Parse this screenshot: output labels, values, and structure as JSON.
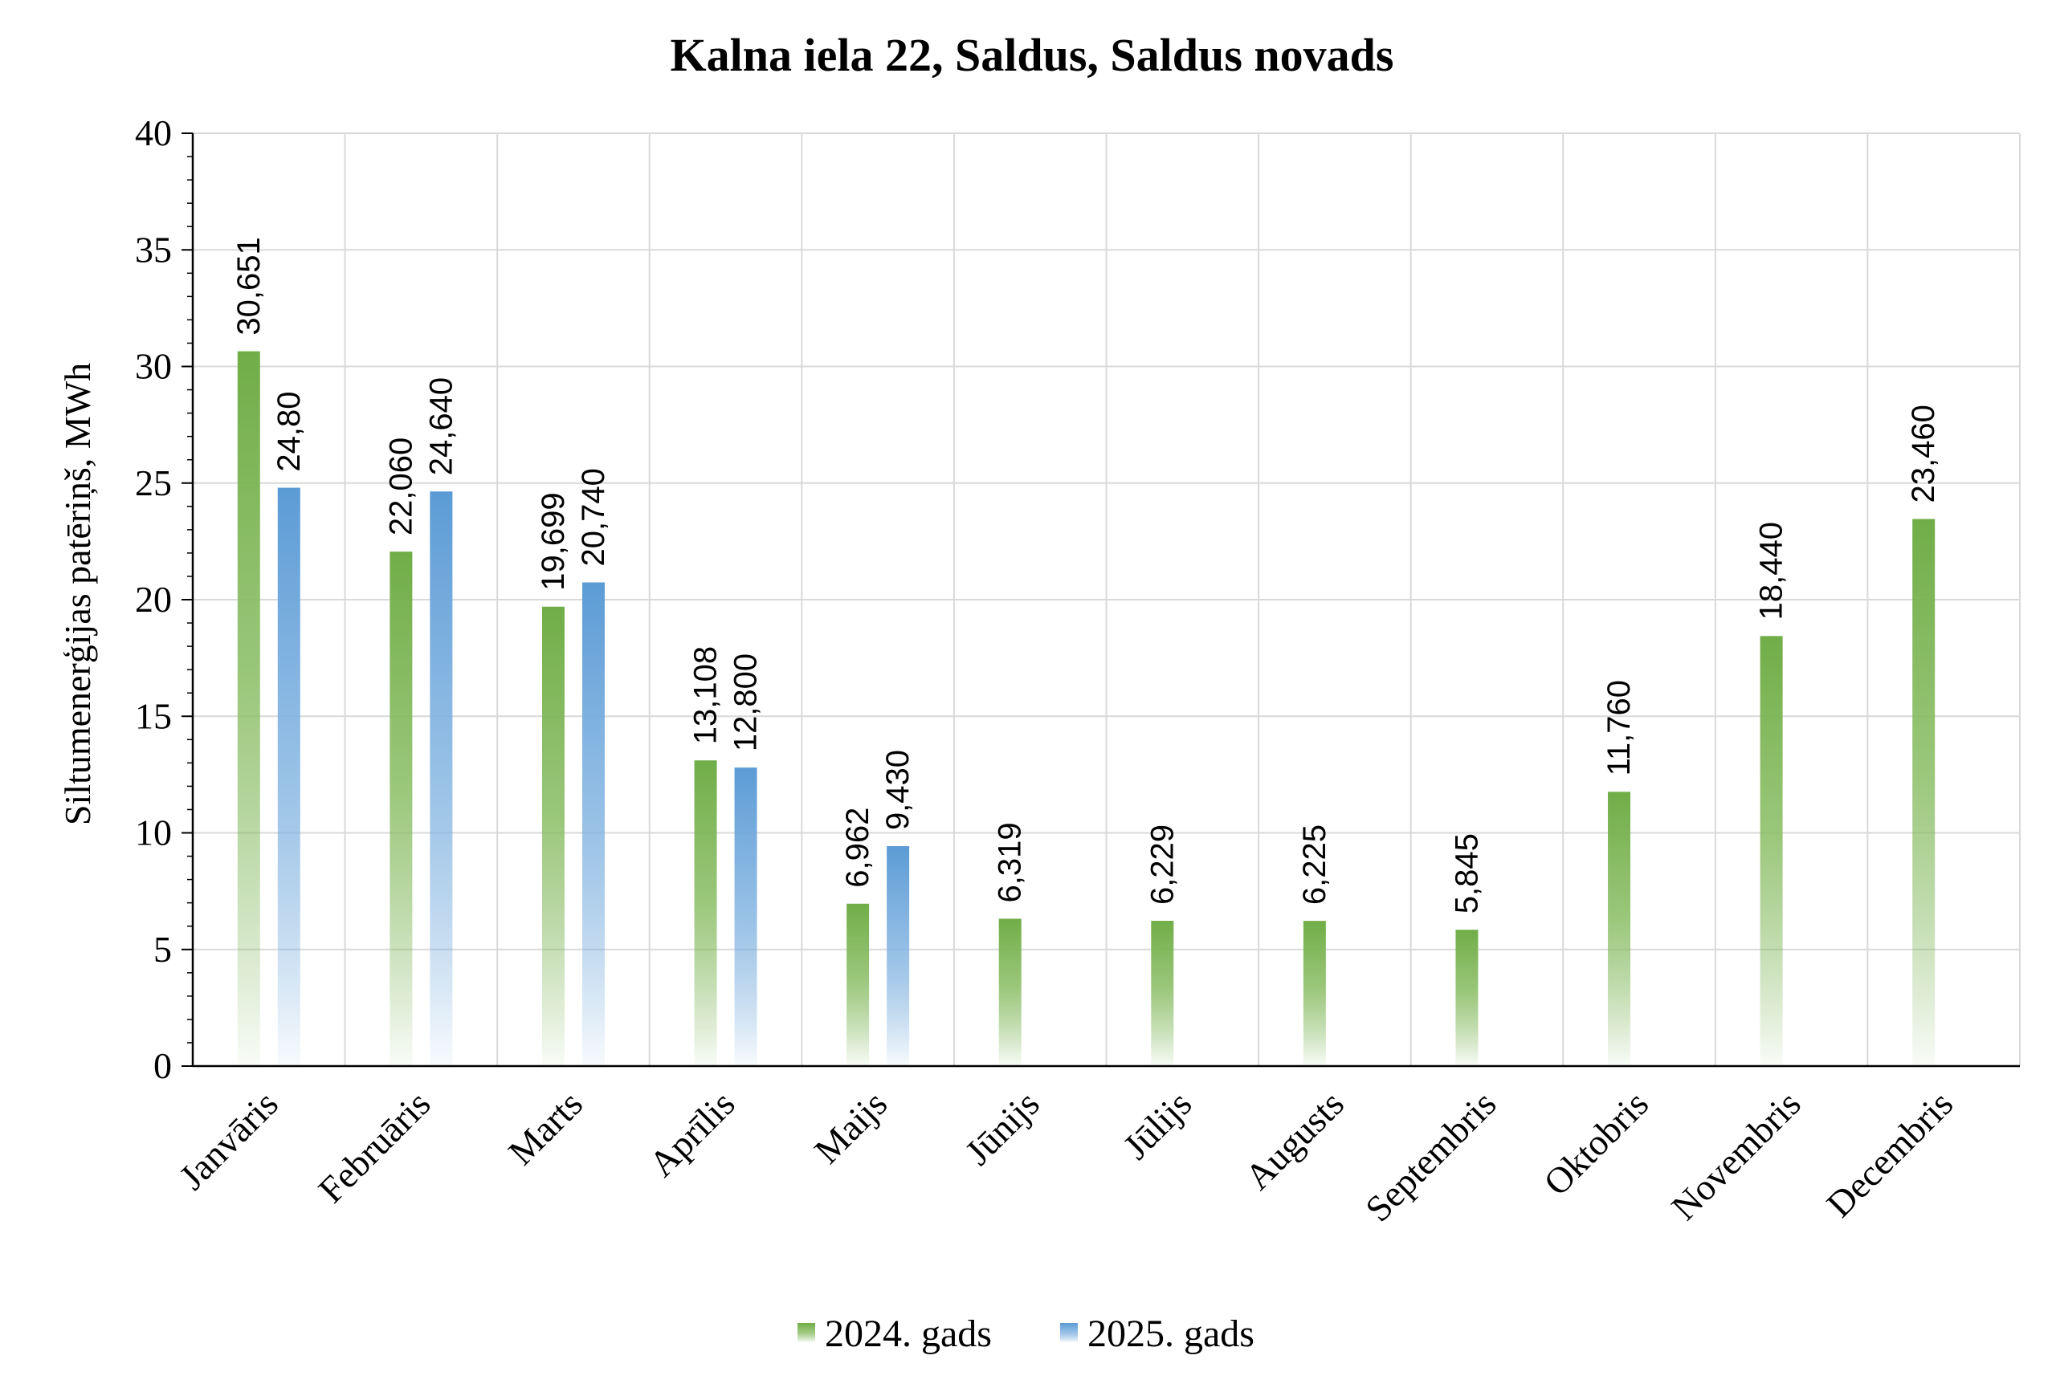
{
  "chart_data": {
    "type": "bar",
    "title": "Kalna iela 22, Saldus, Saldus novads",
    "xlabel": "",
    "ylabel": "Siltumenerģijas patēriņš, MWh",
    "ylim": [
      0,
      40
    ],
    "yticks": [
      0,
      5,
      10,
      15,
      20,
      25,
      30,
      35,
      40
    ],
    "grid": true,
    "legend_position": "bottom",
    "categories": [
      "Janvāris",
      "Februāris",
      "Marts",
      "Aprīlis",
      "Maijs",
      "Jūnijs",
      "Jūlijs",
      "Augusts",
      "Septembris",
      "Oktobris",
      "Novembris",
      "Decembris"
    ],
    "series": [
      {
        "name": "2024. gads",
        "color": "#70ad47",
        "values": [
          30.651,
          22.06,
          19.699,
          13.108,
          6.962,
          6.319,
          6.229,
          6.225,
          5.845,
          11.76,
          18.44,
          23.46
        ],
        "labels": [
          "30,651",
          "22,060",
          "19,699",
          "13,108",
          "6,962",
          "6,319",
          "6,229",
          "6,225",
          "5,845",
          "11,760",
          "18,440",
          "23,460"
        ]
      },
      {
        "name": "2025. gads",
        "color": "#5b9bd5",
        "values": [
          24.8,
          24.64,
          20.74,
          12.8,
          9.43,
          null,
          null,
          null,
          null,
          null,
          null,
          null
        ],
        "labels": [
          "24,80",
          "24,640",
          "20,740",
          "12,800",
          "9,430",
          "",
          "",
          "",
          "",
          "",
          "",
          ""
        ]
      }
    ]
  }
}
